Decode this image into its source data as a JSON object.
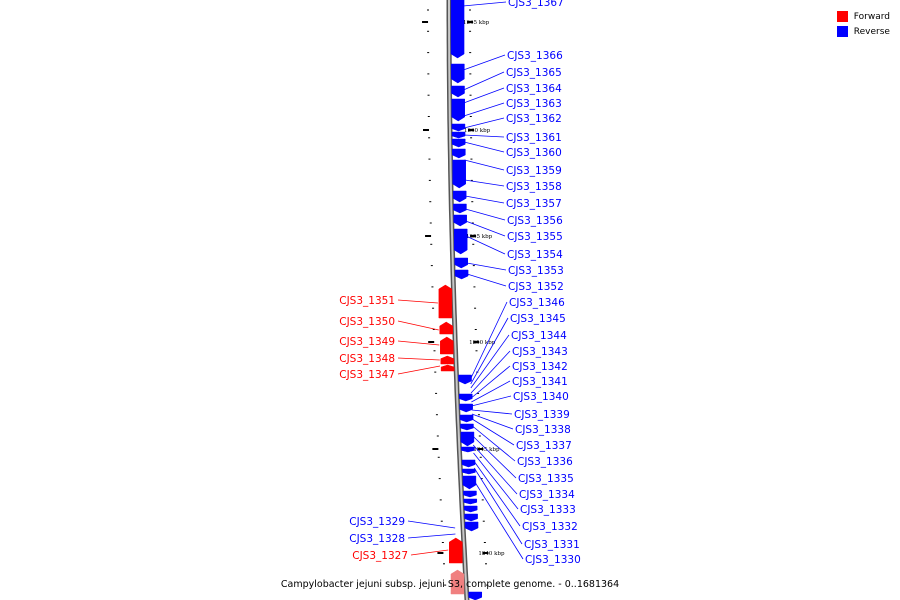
{
  "legend": [
    {
      "label": "Forward",
      "color": "#ff0000"
    },
    {
      "label": "Reverse",
      "color": "#0000ff"
    }
  ],
  "caption": "Campylobacter jejuni subsp. jejuni S3, complete genome. - 0..1681364",
  "colors": {
    "forward": "#ff0000",
    "reverse": "#0000ff",
    "forward_faded": "#f08080",
    "backbone": "#8c8c8c"
  },
  "scale_labels": [
    "1265 kbp",
    "1260 kbp",
    "1255 kbp",
    "1250 kbp",
    "1245 kbp",
    "1240 kbp"
  ],
  "reverse_genes": [
    "CJS3_1367",
    "CJS3_1366",
    "CJS3_1365",
    "CJS3_1364",
    "CJS3_1363",
    "CJS3_1362",
    "CJS3_1361",
    "CJS3_1360",
    "CJS3_1359",
    "CJS3_1358",
    "CJS3_1357",
    "CJS3_1356",
    "CJS3_1355",
    "CJS3_1354",
    "CJS3_1353",
    "CJS3_1352",
    "CJS3_1346",
    "CJS3_1345",
    "CJS3_1344",
    "CJS3_1343",
    "CJS3_1342",
    "CJS3_1341",
    "CJS3_1340",
    "CJS3_1339",
    "CJS3_1338",
    "CJS3_1337",
    "CJS3_1336",
    "CJS3_1335",
    "CJS3_1334",
    "CJS3_1333",
    "CJS3_1332",
    "CJS3_1331",
    "CJS3_1330"
  ],
  "forward_genes": [
    "CJS3_1351",
    "CJS3_1350",
    "CJS3_1349",
    "CJS3_1348",
    "CJS3_1347"
  ],
  "forward_genes_bottom": [
    "CJS3_1327"
  ],
  "reverse_genes_bottom": [
    "CJS3_1329",
    "CJS3_1328"
  ]
}
